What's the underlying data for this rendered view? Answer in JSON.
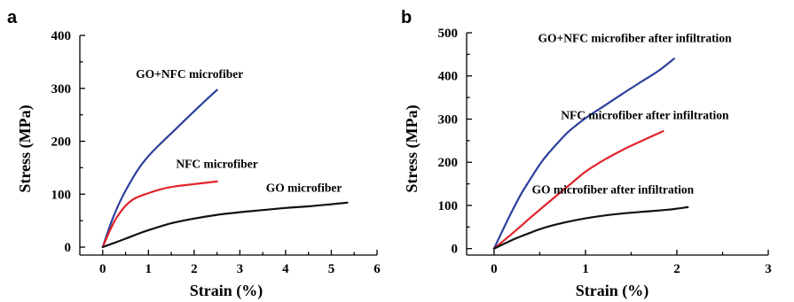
{
  "chart_data": [
    {
      "panel": "a",
      "type": "line",
      "xlabel": "Strain (%)",
      "ylabel": "Stress (MPa)",
      "xlim": [
        -0.5,
        6
      ],
      "ylim": [
        -15,
        400
      ],
      "xticks": [
        0,
        1,
        2,
        3,
        4,
        5,
        6
      ],
      "yticks": [
        0,
        100,
        200,
        300,
        400
      ],
      "series": [
        {
          "name": "GO+NFC microfiber",
          "color": "#2b3f9c",
          "x": [
            0,
            0.2,
            0.4,
            0.6,
            0.8,
            1.0,
            1.2,
            1.5,
            1.8,
            2.1,
            2.5
          ],
          "y": [
            0,
            50,
            90,
            122,
            150,
            172,
            190,
            215,
            240,
            265,
            297
          ],
          "label_pos": [
            1.9,
            320
          ]
        },
        {
          "name": "NFC microfiber",
          "color": "#e0242a",
          "x": [
            0,
            0.15,
            0.3,
            0.5,
            0.7,
            1.0,
            1.3,
            1.6,
            2.0,
            2.5
          ],
          "y": [
            0,
            30,
            55,
            78,
            92,
            102,
            110,
            115,
            119,
            124
          ],
          "label_pos": [
            2.5,
            150
          ]
        },
        {
          "name": "GO microfiber",
          "color": "#111111",
          "x": [
            0,
            0.25,
            0.5,
            0.8,
            1.0,
            1.5,
            2.0,
            2.5,
            3.0,
            3.5,
            4.0,
            4.5,
            5.0,
            5.35
          ],
          "y": [
            0,
            8,
            16,
            26,
            32,
            45,
            54,
            61,
            66,
            70,
            74,
            77,
            81,
            84
          ],
          "label_pos": [
            4.4,
            105
          ]
        }
      ]
    },
    {
      "panel": "b",
      "type": "line",
      "xlabel": "Strain (%)",
      "ylabel": "Stress (MPa)",
      "xlim": [
        -0.3,
        3
      ],
      "ylim": [
        -15,
        500
      ],
      "xticks": [
        0,
        1,
        2,
        3
      ],
      "yticks": [
        0,
        100,
        200,
        300,
        400,
        500
      ],
      "series": [
        {
          "name": "GO+NFC microfiber after infiltration",
          "color": "#2b3f9c",
          "x": [
            0,
            0.1,
            0.2,
            0.3,
            0.4,
            0.5,
            0.6,
            0.8,
            1.0,
            1.2,
            1.4,
            1.6,
            1.8,
            1.97
          ],
          "y": [
            0,
            45,
            88,
            128,
            162,
            195,
            222,
            268,
            302,
            330,
            358,
            385,
            412,
            440
          ],
          "label_pos": [
            1.54,
            478
          ]
        },
        {
          "name": "NFC microfiber after infiltration",
          "color": "#e0242a",
          "x": [
            0,
            0.2,
            0.4,
            0.6,
            0.8,
            1.0,
            1.2,
            1.4,
            1.6,
            1.85
          ],
          "y": [
            0,
            35,
            72,
            108,
            143,
            178,
            205,
            228,
            248,
            272
          ],
          "label_pos": [
            1.65,
            300
          ]
        },
        {
          "name": "GO microfiber after infiltration",
          "color": "#111111",
          "x": [
            0,
            0.1,
            0.2,
            0.3,
            0.4,
            0.5,
            0.7,
            1.0,
            1.3,
            1.6,
            1.9,
            2.12
          ],
          "y": [
            0,
            10,
            20,
            29,
            37,
            45,
            57,
            70,
            79,
            85,
            90,
            96
          ],
          "label_pos": [
            1.3,
            128
          ]
        }
      ]
    }
  ],
  "panels": {
    "a": {
      "letter": "a"
    },
    "b": {
      "letter": "b"
    }
  }
}
